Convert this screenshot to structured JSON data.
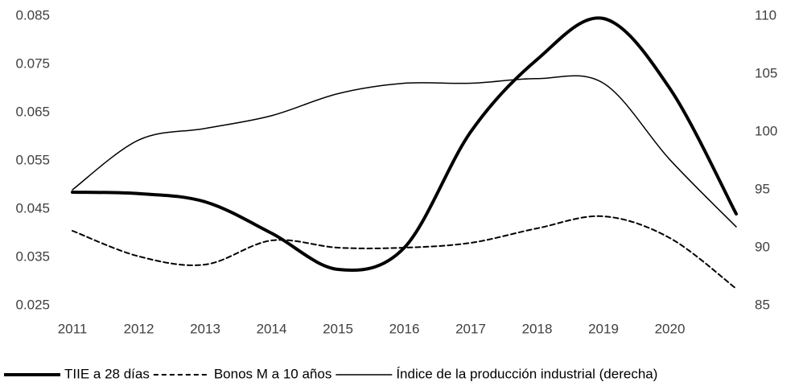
{
  "chart_data": {
    "type": "line",
    "categories": [
      "2011",
      "2012",
      "2013",
      "2014",
      "2015",
      "2016",
      "2017",
      "2018",
      "2019",
      "2020",
      null
    ],
    "series": [
      {
        "name": "TIIE a 28 días",
        "color": "#000000",
        "width": 4,
        "dash": false,
        "values": [
          0.0485,
          0.0482,
          0.0465,
          0.04,
          0.0325,
          0.037,
          0.061,
          0.076,
          0.0845,
          0.07,
          0.044
        ]
      },
      {
        "name": "Bonos M a 10 años",
        "color": "#000000",
        "width": 2,
        "dash": true,
        "values": [
          0.0405,
          0.0352,
          0.0335,
          0.0385,
          0.037,
          0.037,
          0.038,
          0.041,
          0.0435,
          0.039,
          0.0285
        ]
      },
      {
        "name": "Índice de la producción industrial (derecha)",
        "color": "#000000",
        "width": 1.5,
        "dash": false,
        "axis": "y2",
        "values": [
          95,
          99.3,
          100.3,
          101.4,
          103.3,
          104.2,
          104.2,
          104.6,
          104.2,
          97.6,
          91.8
        ]
      }
    ],
    "ylim": [
      0.025,
      0.085
    ],
    "yticks": [
      0.025,
      0.035,
      0.045,
      0.055,
      0.065,
      0.075,
      0.085
    ],
    "y2lim": [
      85,
      110
    ],
    "y2ticks": [
      85,
      90,
      95,
      100,
      105,
      110
    ],
    "grid": false,
    "legend": "bottom"
  }
}
